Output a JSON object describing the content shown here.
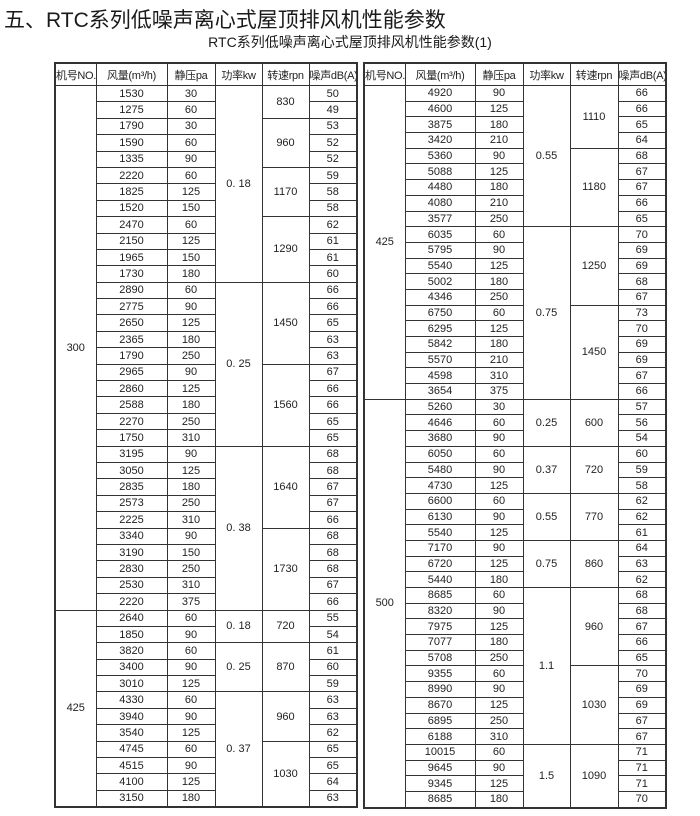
{
  "title": "五、RTC系列低噪声离心式屋顶排风机性能参数",
  "subtitle": "RTC系列低噪声离心式屋顶排风机性能参数(1)",
  "headers": [
    "机号NO.",
    "风量(m³/h)",
    "静压pa",
    "功率kw",
    "转速rpn",
    "噪声dB(A)"
  ],
  "tables": [
    {
      "models": [
        {
          "no": "300",
          "powers": [
            {
              "kw": "0. 18",
              "speeds": [
                {
                  "rpm": "830",
                  "rows": [
                    [
                      "1530",
                      "30",
                      "50"
                    ],
                    [
                      "1275",
                      "60",
                      "49"
                    ]
                  ]
                },
                {
                  "rpm": "960",
                  "rows": [
                    [
                      "1790",
                      "30",
                      "53"
                    ],
                    [
                      "1590",
                      "60",
                      "52"
                    ],
                    [
                      "1335",
                      "90",
                      "52"
                    ]
                  ]
                },
                {
                  "rpm": "1170",
                  "rows": [
                    [
                      "2220",
                      "60",
                      "59"
                    ],
                    [
                      "1825",
                      "125",
                      "58"
                    ],
                    [
                      "1520",
                      "150",
                      "58"
                    ]
                  ]
                },
                {
                  "rpm": "1290",
                  "rows": [
                    [
                      "2470",
                      "60",
                      "62"
                    ],
                    [
                      "2150",
                      "125",
                      "61"
                    ],
                    [
                      "1965",
                      "150",
                      "61"
                    ],
                    [
                      "1730",
                      "180",
                      "60"
                    ]
                  ]
                }
              ]
            },
            {
              "kw": "0. 25",
              "speeds": [
                {
                  "rpm": "1450",
                  "rows": [
                    [
                      "2890",
                      "60",
                      "66"
                    ],
                    [
                      "2775",
                      "90",
                      "66"
                    ],
                    [
                      "2650",
                      "125",
                      "65"
                    ],
                    [
                      "2365",
                      "180",
                      "63"
                    ],
                    [
                      "1790",
                      "250",
                      "63"
                    ]
                  ]
                },
                {
                  "rpm": "1560",
                  "rows": [
                    [
                      "2965",
                      "90",
                      "67"
                    ],
                    [
                      "2860",
                      "125",
                      "66"
                    ],
                    [
                      "2588",
                      "180",
                      "66"
                    ],
                    [
                      "2270",
                      "250",
                      "65"
                    ],
                    [
                      "1750",
                      "310",
                      "65"
                    ]
                  ]
                }
              ]
            },
            {
              "kw": "0. 38",
              "speeds": [
                {
                  "rpm": "1640",
                  "rows": [
                    [
                      "3195",
                      "90",
                      "68"
                    ],
                    [
                      "3050",
                      "125",
                      "68"
                    ],
                    [
                      "2835",
                      "180",
                      "67"
                    ],
                    [
                      "2573",
                      "250",
                      "67"
                    ],
                    [
                      "2225",
                      "310",
                      "66"
                    ]
                  ]
                },
                {
                  "rpm": "1730",
                  "rows": [
                    [
                      "3340",
                      "90",
                      "68"
                    ],
                    [
                      "3190",
                      "150",
                      "68"
                    ],
                    [
                      "2830",
                      "250",
                      "68"
                    ],
                    [
                      "2530",
                      "310",
                      "67"
                    ],
                    [
                      "2220",
                      "375",
                      "66"
                    ]
                  ]
                }
              ]
            }
          ]
        },
        {
          "no": "425",
          "powers": [
            {
              "kw": "0. 18",
              "speeds": [
                {
                  "rpm": "720",
                  "rows": [
                    [
                      "2640",
                      "60",
                      "55"
                    ],
                    [
                      "1850",
                      "90",
                      "54"
                    ]
                  ]
                }
              ]
            },
            {
              "kw": "0. 25",
              "speeds": [
                {
                  "rpm": "870",
                  "rows": [
                    [
                      "3820",
                      "60",
                      "61"
                    ],
                    [
                      "3400",
                      "90",
                      "60"
                    ],
                    [
                      "3010",
                      "125",
                      "59"
                    ]
                  ]
                }
              ]
            },
            {
              "kw": "0. 37",
              "speeds": [
                {
                  "rpm": "960",
                  "rows": [
                    [
                      "4330",
                      "60",
                      "63"
                    ],
                    [
                      "3940",
                      "90",
                      "63"
                    ],
                    [
                      "3540",
                      "125",
                      "62"
                    ]
                  ]
                },
                {
                  "rpm": "1030",
                  "rows": [
                    [
                      "4745",
                      "60",
                      "65"
                    ],
                    [
                      "4515",
                      "90",
                      "65"
                    ],
                    [
                      "4100",
                      "125",
                      "64"
                    ],
                    [
                      "3150",
                      "180",
                      "63"
                    ]
                  ]
                }
              ]
            }
          ]
        }
      ]
    },
    {
      "models": [
        {
          "no": "425",
          "powers": [
            {
              "kw": "0.55",
              "speeds": [
                {
                  "rpm": "1110",
                  "rows": [
                    [
                      "4920",
                      "90",
                      "66"
                    ],
                    [
                      "4600",
                      "125",
                      "66"
                    ],
                    [
                      "3875",
                      "180",
                      "65"
                    ],
                    [
                      "3420",
                      "210",
                      "64"
                    ]
                  ]
                },
                {
                  "rpm": "1180",
                  "rows": [
                    [
                      "5360",
                      "90",
                      "68"
                    ],
                    [
                      "5088",
                      "125",
                      "67"
                    ],
                    [
                      "4480",
                      "180",
                      "67"
                    ],
                    [
                      "4080",
                      "210",
                      "66"
                    ],
                    [
                      "3577",
                      "250",
                      "65"
                    ]
                  ]
                }
              ]
            },
            {
              "kw": "0.75",
              "speeds": [
                {
                  "rpm": "1250",
                  "rows": [
                    [
                      "6035",
                      "60",
                      "70"
                    ],
                    [
                      "5795",
                      "90",
                      "69"
                    ],
                    [
                      "5540",
                      "125",
                      "69"
                    ],
                    [
                      "5002",
                      "180",
                      "68"
                    ],
                    [
                      "4346",
                      "250",
                      "67"
                    ]
                  ]
                },
                {
                  "rpm": "1450",
                  "rows": [
                    [
                      "6750",
                      "60",
                      "73"
                    ],
                    [
                      "6295",
                      "125",
                      "70"
                    ],
                    [
                      "5842",
                      "180",
                      "69"
                    ],
                    [
                      "5570",
                      "210",
                      "69"
                    ],
                    [
                      "4598",
                      "310",
                      "67"
                    ],
                    [
                      "3654",
                      "375",
                      "66"
                    ]
                  ]
                }
              ]
            }
          ]
        },
        {
          "no": "500",
          "powers": [
            {
              "kw": "0.25",
              "speeds": [
                {
                  "rpm": "600",
                  "rows": [
                    [
                      "5260",
                      "30",
                      "57"
                    ],
                    [
                      "4646",
                      "60",
                      "56"
                    ],
                    [
                      "3680",
                      "90",
                      "54"
                    ]
                  ]
                }
              ]
            },
            {
              "kw": "0.37",
              "speeds": [
                {
                  "rpm": "720",
                  "rows": [
                    [
                      "6050",
                      "60",
                      "60"
                    ],
                    [
                      "5480",
                      "90",
                      "59"
                    ],
                    [
                      "4730",
                      "125",
                      "58"
                    ]
                  ]
                }
              ]
            },
            {
              "kw": "0.55",
              "speeds": [
                {
                  "rpm": "770",
                  "rows": [
                    [
                      "6600",
                      "60",
                      "62"
                    ],
                    [
                      "6130",
                      "90",
                      "62"
                    ],
                    [
                      "5540",
                      "125",
                      "61"
                    ]
                  ]
                }
              ]
            },
            {
              "kw": "0.75",
              "speeds": [
                {
                  "rpm": "860",
                  "rows": [
                    [
                      "7170",
                      "90",
                      "64"
                    ],
                    [
                      "6720",
                      "125",
                      "63"
                    ],
                    [
                      "5440",
                      "180",
                      "62"
                    ]
                  ]
                }
              ]
            },
            {
              "kw": "1.1",
              "speeds": [
                {
                  "rpm": "960",
                  "rows": [
                    [
                      "8685",
                      "60",
                      "68"
                    ],
                    [
                      "8320",
                      "90",
                      "68"
                    ],
                    [
                      "7975",
                      "125",
                      "67"
                    ],
                    [
                      "7077",
                      "180",
                      "66"
                    ],
                    [
                      "5708",
                      "250",
                      "65"
                    ]
                  ]
                },
                {
                  "rpm": "1030",
                  "rows": [
                    [
                      "9355",
                      "60",
                      "70"
                    ],
                    [
                      "8990",
                      "90",
                      "69"
                    ],
                    [
                      "8670",
                      "125",
                      "69"
                    ],
                    [
                      "6895",
                      "250",
                      "67"
                    ],
                    [
                      "6188",
                      "310",
                      "67"
                    ]
                  ]
                }
              ]
            },
            {
              "kw": "1.5",
              "speeds": [
                {
                  "rpm": "1090",
                  "rows": [
                    [
                      "10015",
                      "60",
                      "71"
                    ],
                    [
                      "9645",
                      "90",
                      "71"
                    ],
                    [
                      "9345",
                      "125",
                      "71"
                    ],
                    [
                      "8685",
                      "180",
                      "70"
                    ]
                  ]
                }
              ]
            }
          ]
        }
      ]
    }
  ]
}
